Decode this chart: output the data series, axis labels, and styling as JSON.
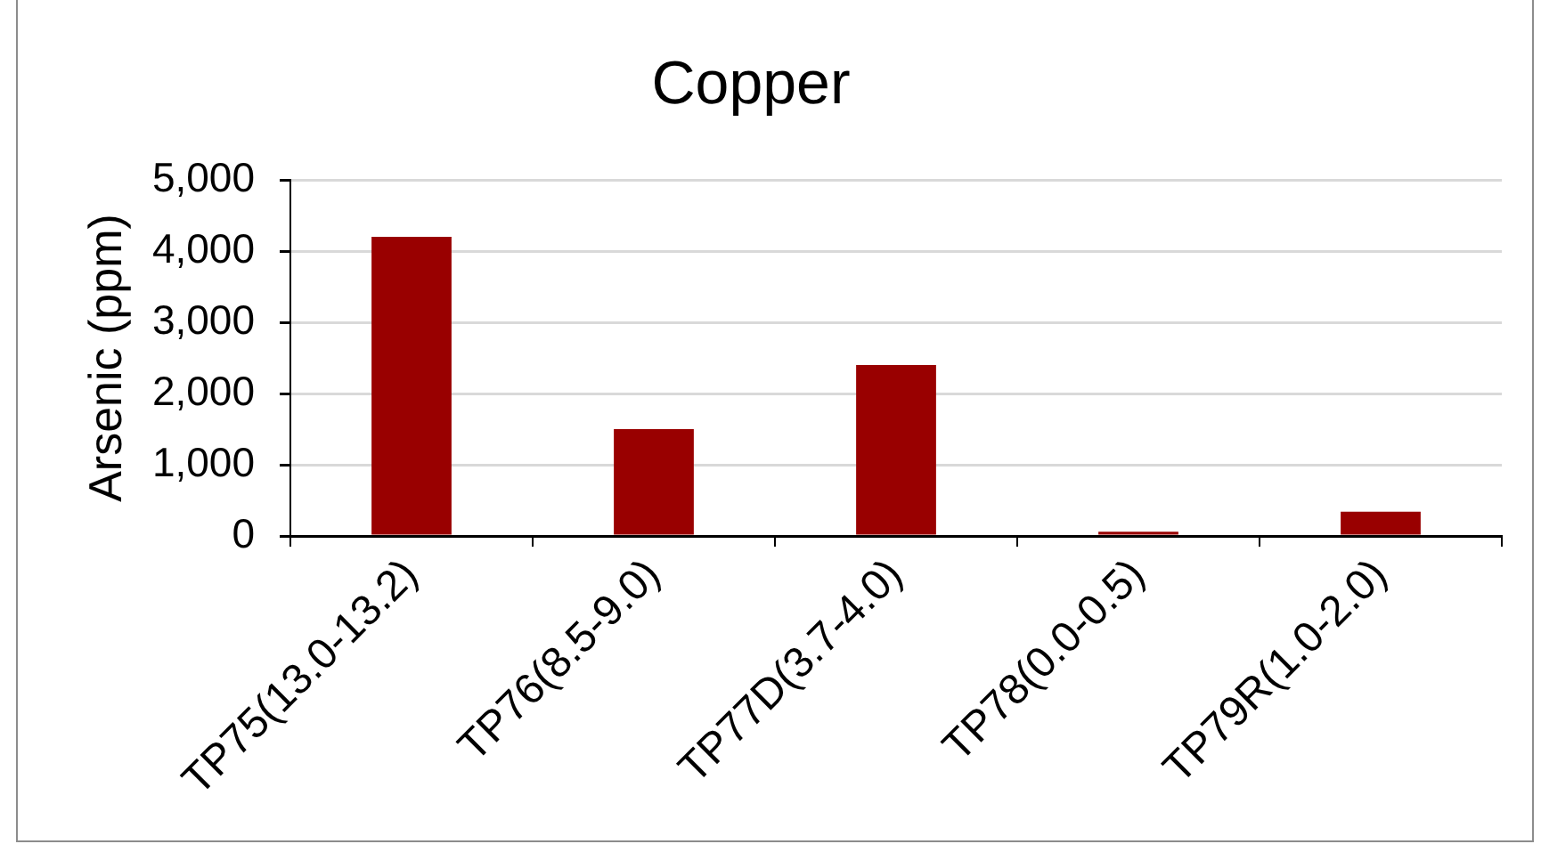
{
  "chart_data": {
    "type": "bar",
    "title": "Copper",
    "ylabel": "Arsenic (ppm)",
    "categories": [
      "TP75(13.0-13.2)",
      "TP76(8.5-9.0)",
      "TP77D(3.7-4.0)",
      "TP78(0.0-0.5)",
      "TP79R(1.0-2.0)"
    ],
    "values": [
      4200,
      1500,
      2400,
      60,
      340
    ],
    "color": "#990000",
    "ylim": [
      0,
      5000
    ],
    "yticks": [
      0,
      {
        "value": 1000,
        "label": "1,000"
      },
      {
        "value": 2000,
        "label": "2,000"
      },
      {
        "value": 3000,
        "label": "3,000"
      },
      {
        "value": 4000,
        "label": "4,000"
      },
      {
        "value": 5000,
        "label": "5,000"
      }
    ],
    "grid": "y"
  }
}
